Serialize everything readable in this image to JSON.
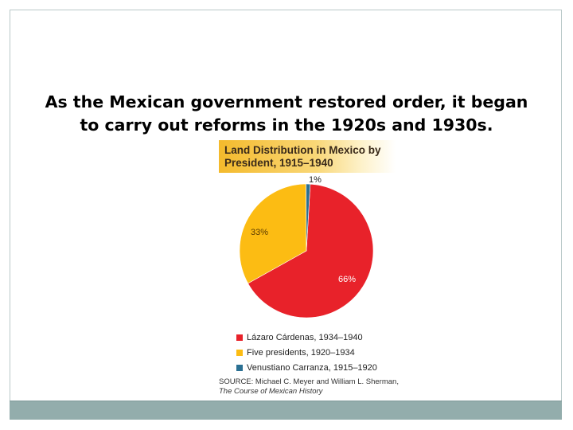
{
  "slide": {
    "title_lines": [
      "As the Mexican government restored order, it began",
      "to carry out reforms in the 1920s and 1930s."
    ],
    "frame_color": "#b9c8c8",
    "footer_color": "#93adac"
  },
  "chart_data": {
    "type": "pie",
    "title_lines": [
      "Land Distribution in Mexico by",
      "President, 1915–1940"
    ],
    "slices": [
      {
        "name": "Lázaro Cárdenas, 1934–1940",
        "value": 66,
        "label": "66%",
        "color": "#e8222a"
      },
      {
        "name": "Five presidents, 1920–1934",
        "value": 33,
        "label": "33%",
        "color": "#fcbc13"
      },
      {
        "name": "Venustiano Carranza, 1915–1920",
        "value": 1,
        "label": "1%",
        "color": "#2b7093"
      }
    ],
    "legend": [
      {
        "label": "Lázaro Cárdenas, 1934–1940",
        "color": "#e8222a"
      },
      {
        "label": "Five presidents, 1920–1934",
        "color": "#fcbc13"
      },
      {
        "label": "Venustiano Carranza, 1915–1920",
        "color": "#2b7093"
      }
    ],
    "legend_placement": "bottom",
    "source_lines": [
      "SOURCE: Michael C. Meyer and William L. Sherman,",
      "The Course of Mexican History"
    ]
  }
}
